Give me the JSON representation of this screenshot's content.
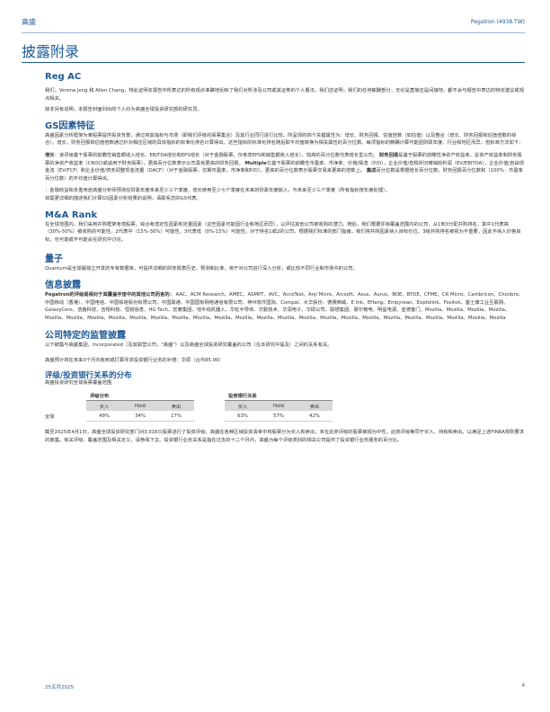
{
  "header": {
    "left": "高盛",
    "right": "Pegatron (4938.TW)"
  },
  "page_title": "披露附录",
  "reg_ac": {
    "heading": "Reg AC",
    "p1": "我们，Verena Jeng 和 Allen Chang，特此证明本报告中所表达的所有观点准确地反映了我们对所涉及公司或其证券的个人看法。我们还证明，我们的任何薪酬部分，无论是直接还是间接地，都不会与报告中表达的特定建议或观点相关。",
    "p2": "除非另有说明，本报告封面列出的个人均为高盛全球投资研究部的研究员。"
  },
  "gs_factor": {
    "heading": "GS因素特征",
    "p1": "高盛因素分析框架为某股票提供投资背景，通过将其指标与市场（即我们评级的股票集合）及其行业同行进行比较。所呈现的四个关键属性为：增长、财务回报、估值倍数（如估值）以及整合（增长、财务回报和估值倍数的综合）。增长、财务回报和估值倍数通过针对相应区域的具体指标的标准化排名计算得出。这些指标的标准化排名随后取平均值转换为相关属性的百分位数。每项指标的精确计算可能因财政年度、行业和地区而异，但标准方法如下：",
    "p2_b1": "增长",
    "p2_t1": "：该评级基于股票的前瞻性销售额收入增长、EBITDA增长和EPS增长（对于金融股票，仅考虑EPS和销售额收入增长），较高的百分位数代表增长型公司。",
    "p2_b2": "财务回报",
    "p2_t2": "是基于股票的前瞻性净资产收益率，总资产收益率和财务股票的净资产收益率（CROCI或适用于财务股票），更高百分位数表示公司具有更高的财务回报。",
    "p2_b3": "Multiple",
    "p2_t3": "它基于股票的前瞻性市盈率、市净率、价格/股息（P/D），企业价值/息税折旧摊销前利润（EV/EBITDA），企业价值/自由现金流（EV/FCF）和企业价值/债务调整现金流量（DACF）（对于金融股票，仅期市盈率，市净率和P/D），更高的百分位数表示股票交易来更高的倍数上。",
    "p2_b4": "集成",
    "p2_t4": "百分位数是根据增长百分位数，财务回报百分位数和（100% - 市盈率百分位数）的平均值计算得出。",
    "p3": "：金融收益和多重用途高盛分析师预测在财政年度未来至少三个季度。增长使用至少七个季度在未来的财政年度输入，与未来至少三个季度（所有指标按年度处理）。",
    "p4": "如需更详细的描述我们计算GS因素分析结果的说明，请联系您的GS代表。"
  },
  "ma_rank": {
    "heading": "M&A Rank",
    "p1": "在全球范围内，我们采用并购框架考虑股票，综合考虑定性因素和定量因素（这些因素可能因行业和地区而异），以评估其他公司被收购的潜力。随后，我们根据评级覆盖范围内的公司，从1到3分配并购排名，其中1代表高（30%-50%）被收购的可能性，2代表中（15%-30%）可能性，3代表低（0%-15%）可能性。对于排名1或2的公司，根据我们标准的部门指南，我们将并购因素纳入目标价位。3级并购排名被视为不重要，因此不纳入价格目标，也可能或不可能会在研究中讨论。"
  },
  "quantum": {
    "heading": "量子",
    "p1": "Quantum是全球最独立开发的专有数据库，可提供详细的财务报表历史、预测和比率，用于对公司进行深入分析，或比较不同行业和市场中的公司。"
  },
  "disclosures": {
    "heading": "信息披露",
    "lead": "Pegatron的评级是相对于其覆盖宇宙中的其他公司而言的：",
    "list": "AAC、ACM Research、AMEC、ASMPT、AVC、AccoTest、Anji Micro、Arcsoft、Asus、Aurus、BOE、BYDE、CFME、CR Micro、Cambricon、Chenbro、中国移动（香港）、中国电信、中国铁塔股份有限公司、中国联通、中国国有网络通信有限公司、神州软件国际、Compal、大华股份、德赛西威、E Ink、EHang、Empyrean、Eoptolink、Fositek、富士康工业互联网、GalaxyCore、浩鑫科技、吉翔科技、恒锐信息、HG Tech、宏碁集团、地平线机器人、华虹半导体、华勤技术、华润电子、华硕公司、联想集团、歌尔微电、明星电源、亚德客门、Mozilla、Mozilla、Mozilla、Mozilla、Mozilla、Mozilla、Mozilla、Mozilla、Mozilla、Mozilla、Mozilla、Mozilla、Mozilla、Mozilla、Mozilla、Mozilla、Mozilla、Mozilla、Mozilla、Mozilla、Mozilla、Mozilla、Mozilla、Mozilla、Mozilla、Mozilla"
  },
  "company_specific": {
    "heading": "公司特定的监管披露",
    "p1": "以下披露与高盛集团，Incorporated（及其联营公司，\"高盛\"）以及高盛全球投资研究覆盖的公司（在本研究中提及）之间的关系有关。",
    "p2": "高盛预计将在未来3个月内收到或打算寻求投资银行业务的补偿：华硕（台币85.00）"
  },
  "distribution": {
    "heading": "评级/投资银行关系的分布",
    "sub": "高盛投资研究全球股票覆盖范围",
    "group1": "评级分布",
    "group2": "投资银行关系",
    "columns": [
      "买入",
      "Hold",
      "卖出"
    ],
    "row_label": "全球",
    "rating_values": [
      "49%",
      "34%",
      "17%"
    ],
    "ib_values": [
      "63%",
      "57%",
      "42%"
    ],
    "note": "截至2025年4月1日，高盛全球投资研究部门对3,016只股票进行了投资评级。高盛在各种区域投资清单中将股票分为买入和卖出；未在此类评级的股票被视为中性。此类评级等同于买入、持有和卖出，以满足上述FINRA规则要求的披露。有关评级、覆盖范围及相关定义，请参阅下文。投资银行业务关系是指在过去的十二个月内，高盛为每个评级类别的相关公司提供了投资银行业务服务的百分比。"
  },
  "footer": {
    "date": "25五月2025",
    "page": "4"
  }
}
